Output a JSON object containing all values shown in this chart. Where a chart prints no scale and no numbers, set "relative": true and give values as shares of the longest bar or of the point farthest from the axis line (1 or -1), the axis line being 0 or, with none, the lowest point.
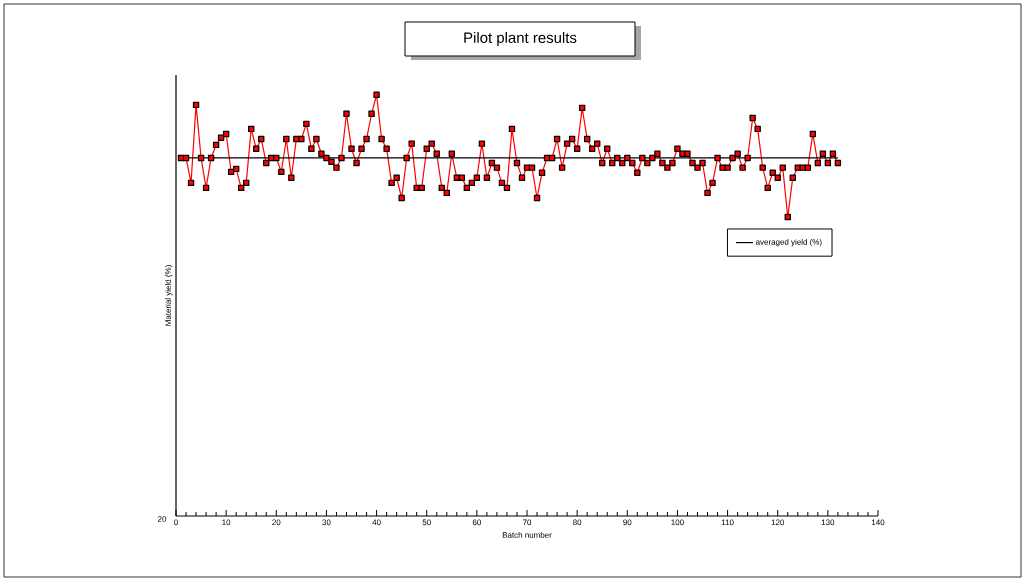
{
  "chart_data": {
    "type": "line",
    "title": "Pilot plant results",
    "xlabel": "Batch number",
    "ylabel": "Material yield (%)",
    "relative": true,
    "xlim": [
      0,
      140
    ],
    "xticks": [
      0,
      10,
      20,
      30,
      40,
      50,
      60,
      70,
      80,
      90,
      100,
      110,
      120,
      130,
      140
    ],
    "annotations": [
      "20"
    ],
    "legend": "right",
    "marker": "square",
    "line_style": "solid",
    "series": [
      {
        "color": "#ff0000",
        "x": [
          1,
          2,
          3,
          4,
          5,
          6,
          7,
          8,
          9,
          10,
          11,
          12,
          13,
          14,
          15,
          16,
          17,
          18,
          19,
          20,
          21,
          22,
          23,
          24,
          25,
          26,
          27,
          28,
          29,
          30,
          31,
          32,
          33,
          34,
          35,
          36,
          37,
          38,
          39,
          40,
          41,
          42,
          43,
          44,
          45,
          46,
          47,
          48,
          49,
          50,
          51,
          52,
          53,
          54,
          55,
          56,
          57,
          58,
          59,
          60,
          61,
          62,
          63,
          64,
          65,
          66,
          67,
          68,
          69,
          70,
          71,
          72,
          73,
          74,
          75,
          76,
          77,
          78,
          79,
          80,
          81,
          82,
          83,
          84,
          85,
          86,
          87,
          88,
          89,
          90,
          91,
          92,
          93,
          94,
          95,
          96,
          97,
          98,
          99,
          100,
          101,
          102,
          103,
          104,
          105,
          106,
          107,
          108,
          109,
          110,
          111,
          112,
          113,
          114,
          115,
          116,
          117,
          118,
          119,
          120,
          121,
          122,
          123,
          124,
          125,
          126,
          127,
          128,
          129,
          130,
          131,
          132
        ],
        "values": [
          0.85,
          0.85,
          0.791,
          0.976,
          0.85,
          0.779,
          0.85,
          0.881,
          0.898,
          0.907,
          0.817,
          0.824,
          0.779,
          0.791,
          0.919,
          0.872,
          0.895,
          0.838,
          0.85,
          0.85,
          0.817,
          0.895,
          0.803,
          0.895,
          0.895,
          0.931,
          0.872,
          0.895,
          0.86,
          0.85,
          0.841,
          0.827,
          0.85,
          0.955,
          0.872,
          0.838,
          0.872,
          0.895,
          0.955,
          1.0,
          0.895,
          0.872,
          0.791,
          0.803,
          0.755,
          0.85,
          0.884,
          0.779,
          0.779,
          0.872,
          0.884,
          0.86,
          0.779,
          0.767,
          0.86,
          0.803,
          0.803,
          0.779,
          0.791,
          0.803,
          0.884,
          0.803,
          0.838,
          0.827,
          0.791,
          0.779,
          0.919,
          0.838,
          0.803,
          0.827,
          0.827,
          0.755,
          0.815,
          0.85,
          0.85,
          0.895,
          0.827,
          0.884,
          0.895,
          0.872,
          0.969,
          0.895,
          0.872,
          0.884,
          0.838,
          0.872,
          0.838,
          0.85,
          0.838,
          0.85,
          0.838,
          0.815,
          0.85,
          0.838,
          0.85,
          0.86,
          0.838,
          0.827,
          0.838,
          0.872,
          0.86,
          0.86,
          0.838,
          0.827,
          0.838,
          0.767,
          0.791,
          0.85,
          0.827,
          0.827,
          0.85,
          0.86,
          0.827,
          0.85,
          0.945,
          0.919,
          0.827,
          0.779,
          0.815,
          0.803,
          0.827,
          0.71,
          0.803,
          0.827,
          0.827,
          0.827,
          0.907,
          0.838,
          0.86,
          0.838,
          0.86,
          0.838
        ]
      },
      {
        "name": "averaged yield (%)",
        "color": "#000000",
        "marker": "none",
        "x": [
          1,
          132
        ],
        "values": [
          0.85,
          0.85
        ]
      }
    ]
  }
}
